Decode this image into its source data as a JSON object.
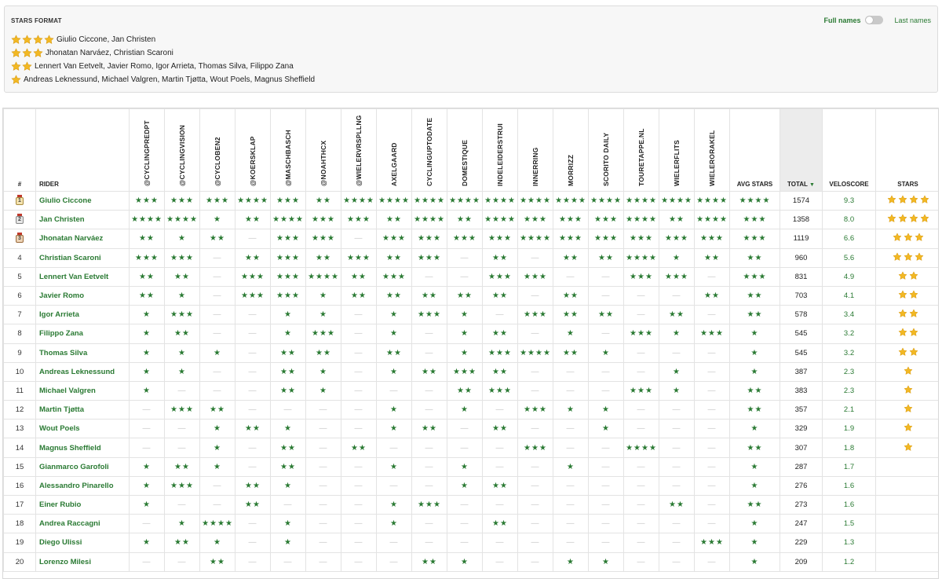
{
  "stars_format": {
    "title": "STARS FORMAT",
    "rows": [
      {
        "stars": 4,
        "names": "Giulio Ciccone, Jan Christen"
      },
      {
        "stars": 3,
        "names": "Jhonatan Narváez, Christian Scaroni"
      },
      {
        "stars": 2,
        "names": "Lennert Van Eetvelt, Javier Romo, Igor Arrieta, Thomas Silva, Filippo Zana"
      },
      {
        "stars": 1,
        "names": "Andreas Leknessund, Michael Valgren, Martin Tjøtta, Wout Poels, Magnus Sheffield"
      }
    ]
  },
  "toggle": {
    "full_label": "Full names",
    "last_label": "Last names",
    "state": "full"
  },
  "colors": {
    "accent_green": "#2a7a33",
    "gold_star": "#f2b824",
    "dash": "#c8c8c8"
  },
  "table": {
    "headers": {
      "rank": "#",
      "rider": "RIDER",
      "sources": [
        "@CYCLINGPREDPT",
        "@CYCLINGVISION",
        "@CYCLOBEN2",
        "@KOERSKLAP",
        "@MASCHBASCH",
        "@NOAHTHCX",
        "@WIELERVRSPLLNG",
        "AXELGAARD",
        "CYCLINGUPTODATE",
        "DOMESTIQUE",
        "INDELEIDERSTRUI",
        "INNERRING",
        "MORRIZZ",
        "SCORITO DAILY",
        "TOURETAPPE.NL",
        "WIELERFLITS",
        "WIELERORAKEL"
      ],
      "avg": "AVG STARS",
      "total": "TOTAL",
      "total_sort": "▼",
      "velo": "VELOSCORE",
      "stars": "STARS"
    },
    "star_glyph": "★",
    "dash_glyph": "—",
    "rows": [
      {
        "rank": "1",
        "medal": "gold",
        "rider": "Giulio Ciccone",
        "picks": [
          3,
          3,
          3,
          4,
          3,
          2,
          4,
          4,
          4,
          4,
          4,
          4,
          4,
          4,
          4,
          4,
          4
        ],
        "avg": 4,
        "total": "1574",
        "velo": "9.3",
        "stars": 4
      },
      {
        "rank": "2",
        "medal": "silver",
        "rider": "Jan Christen",
        "picks": [
          4,
          4,
          1,
          2,
          4,
          3,
          3,
          2,
          4,
          2,
          4,
          3,
          3,
          3,
          4,
          2,
          4
        ],
        "avg": 3,
        "total": "1358",
        "velo": "8.0",
        "stars": 4
      },
      {
        "rank": "3",
        "medal": "bronze",
        "rider": "Jhonatan Narváez",
        "picks": [
          2,
          1,
          2,
          0,
          3,
          3,
          0,
          3,
          3,
          3,
          3,
          4,
          3,
          3,
          3,
          3,
          3
        ],
        "avg": 3,
        "total": "1119",
        "velo": "6.6",
        "stars": 3
      },
      {
        "rank": "4",
        "medal": "",
        "rider": "Christian Scaroni",
        "picks": [
          3,
          3,
          0,
          2,
          3,
          2,
          3,
          2,
          3,
          0,
          2,
          0,
          2,
          2,
          4,
          1,
          2
        ],
        "avg": 2,
        "total": "960",
        "velo": "5.6",
        "stars": 3
      },
      {
        "rank": "5",
        "medal": "",
        "rider": "Lennert Van Eetvelt",
        "picks": [
          2,
          2,
          0,
          3,
          3,
          4,
          2,
          3,
          0,
          0,
          3,
          3,
          0,
          0,
          3,
          3,
          0
        ],
        "avg": 3,
        "total": "831",
        "velo": "4.9",
        "stars": 2
      },
      {
        "rank": "6",
        "medal": "",
        "rider": "Javier Romo",
        "picks": [
          2,
          1,
          0,
          3,
          3,
          1,
          2,
          2,
          2,
          2,
          2,
          0,
          2,
          0,
          0,
          0,
          2
        ],
        "avg": 2,
        "total": "703",
        "velo": "4.1",
        "stars": 2
      },
      {
        "rank": "7",
        "medal": "",
        "rider": "Igor Arrieta",
        "picks": [
          1,
          3,
          0,
          0,
          1,
          1,
          0,
          1,
          3,
          1,
          0,
          3,
          2,
          2,
          0,
          2,
          0
        ],
        "avg": 2,
        "total": "578",
        "velo": "3.4",
        "stars": 2
      },
      {
        "rank": "8",
        "medal": "",
        "rider": "Filippo Zana",
        "picks": [
          1,
          2,
          0,
          0,
          1,
          3,
          0,
          1,
          0,
          1,
          2,
          0,
          1,
          0,
          3,
          1,
          3
        ],
        "avg": 1,
        "total": "545",
        "velo": "3.2",
        "stars": 2
      },
      {
        "rank": "9",
        "medal": "",
        "rider": "Thomas Silva",
        "picks": [
          1,
          1,
          1,
          0,
          2,
          2,
          0,
          2,
          0,
          1,
          3,
          4,
          2,
          1,
          0,
          0,
          0
        ],
        "avg": 1,
        "total": "545",
        "velo": "3.2",
        "stars": 2
      },
      {
        "rank": "10",
        "medal": "",
        "rider": "Andreas Leknessund",
        "picks": [
          1,
          1,
          0,
          0,
          2,
          1,
          0,
          1,
          2,
          3,
          2,
          0,
          0,
          0,
          0,
          1,
          0
        ],
        "avg": 1,
        "total": "387",
        "velo": "2.3",
        "stars": 1
      },
      {
        "rank": "11",
        "medal": "",
        "rider": "Michael Valgren",
        "picks": [
          1,
          0,
          0,
          0,
          2,
          1,
          0,
          0,
          0,
          2,
          3,
          0,
          0,
          0,
          3,
          1,
          0
        ],
        "avg": 2,
        "total": "383",
        "velo": "2.3",
        "stars": 1
      },
      {
        "rank": "12",
        "medal": "",
        "rider": "Martin Tjøtta",
        "picks": [
          0,
          3,
          2,
          0,
          0,
          0,
          0,
          1,
          0,
          1,
          0,
          3,
          1,
          1,
          0,
          0,
          0
        ],
        "avg": 2,
        "total": "357",
        "velo": "2.1",
        "stars": 1
      },
      {
        "rank": "13",
        "medal": "",
        "rider": "Wout Poels",
        "picks": [
          0,
          0,
          1,
          2,
          1,
          0,
          0,
          1,
          2,
          0,
          2,
          0,
          0,
          1,
          0,
          0,
          0
        ],
        "avg": 1,
        "total": "329",
        "velo": "1.9",
        "stars": 1
      },
      {
        "rank": "14",
        "medal": "",
        "rider": "Magnus Sheffield",
        "picks": [
          0,
          0,
          1,
          0,
          2,
          0,
          2,
          0,
          0,
          0,
          0,
          3,
          0,
          0,
          4,
          0,
          0
        ],
        "avg": 2,
        "total": "307",
        "velo": "1.8",
        "stars": 1
      },
      {
        "rank": "15",
        "medal": "",
        "rider": "Gianmarco Garofoli",
        "picks": [
          1,
          2,
          1,
          0,
          2,
          0,
          0,
          1,
          0,
          1,
          0,
          0,
          1,
          0,
          0,
          0,
          0
        ],
        "avg": 1,
        "total": "287",
        "velo": "1.7",
        "stars": 0
      },
      {
        "rank": "16",
        "medal": "",
        "rider": "Alessandro Pinarello",
        "picks": [
          1,
          3,
          0,
          2,
          1,
          0,
          0,
          0,
          0,
          1,
          2,
          0,
          0,
          0,
          0,
          0,
          0
        ],
        "avg": 1,
        "total": "276",
        "velo": "1.6",
        "stars": 0
      },
      {
        "rank": "17",
        "medal": "",
        "rider": "Einer Rubio",
        "picks": [
          1,
          0,
          0,
          2,
          0,
          0,
          0,
          1,
          3,
          0,
          0,
          0,
          0,
          0,
          0,
          2,
          0
        ],
        "avg": 2,
        "total": "273",
        "velo": "1.6",
        "stars": 0
      },
      {
        "rank": "18",
        "medal": "",
        "rider": "Andrea Raccagni",
        "picks": [
          0,
          1,
          4,
          0,
          1,
          0,
          0,
          1,
          0,
          0,
          2,
          0,
          0,
          0,
          0,
          0,
          0
        ],
        "avg": 1,
        "total": "247",
        "velo": "1.5",
        "stars": 0
      },
      {
        "rank": "19",
        "medal": "",
        "rider": "Diego Ulissi",
        "picks": [
          1,
          2,
          1,
          0,
          1,
          0,
          0,
          0,
          0,
          0,
          0,
          0,
          0,
          0,
          0,
          0,
          3
        ],
        "avg": 1,
        "total": "229",
        "velo": "1.3",
        "stars": 0
      },
      {
        "rank": "20",
        "medal": "",
        "rider": "Lorenzo Milesi",
        "picks": [
          0,
          0,
          2,
          0,
          0,
          0,
          0,
          0,
          2,
          1,
          0,
          0,
          1,
          1,
          0,
          0,
          0
        ],
        "avg": 1,
        "total": "209",
        "velo": "1.2",
        "stars": 0
      }
    ]
  }
}
